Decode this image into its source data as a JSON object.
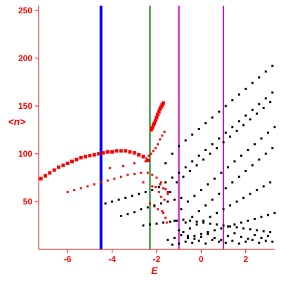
{
  "chart_data": {
    "type": "scatter",
    "xlabel": "E",
    "ylabel": "<n>",
    "xlim": [
      -7.3,
      3.3
    ],
    "ylim": [
      0,
      255
    ],
    "x_ticks": [
      -6,
      -4,
      -2,
      0,
      2
    ],
    "x_tick_labels": [
      "-6",
      "-4",
      "-2",
      "0",
      "2"
    ],
    "y_ticks": [
      50,
      100,
      150,
      200,
      250
    ],
    "y_tick_labels": [
      "50",
      "100",
      "150",
      "200",
      "250"
    ],
    "grid": false,
    "colors": {
      "axis": "#ff0000",
      "red_series": "#ff0000",
      "black_series": "#000000"
    },
    "vertical_lines": [
      {
        "x": -4.5,
        "color": "#0000ff",
        "width": "thick"
      },
      {
        "x": -2.3,
        "color": "#008000",
        "width": "thin"
      },
      {
        "x": -1.0,
        "color": "#cc00cc",
        "width": "thin"
      },
      {
        "x": 1.0,
        "color": "#cc00cc",
        "width": "thin"
      }
    ],
    "series": [
      {
        "color": "#ff0000",
        "marker": "large",
        "x": [
          -7.2,
          -7.0,
          -6.8,
          -6.6,
          -6.4,
          -6.2,
          -6.0,
          -5.8,
          -5.6,
          -5.4,
          -5.2,
          -5.0,
          -4.8,
          -4.6,
          -4.4,
          -4.2,
          -4.0,
          -3.8,
          -3.6,
          -3.4,
          -3.2,
          -3.0,
          -2.8,
          -2.6,
          -2.4,
          -2.25,
          -2.2,
          -2.15,
          -2.1,
          -2.05,
          -2.0,
          -1.95,
          -1.9,
          -1.85,
          -1.8,
          -1.75,
          -1.7
        ],
        "y": [
          74,
          77,
          80,
          83,
          86,
          88,
          90,
          92,
          94,
          96,
          97,
          98,
          99,
          100,
          101,
          102,
          102,
          103,
          103,
          103,
          102,
          101,
          99,
          97,
          93,
          125,
          127,
          130,
          132,
          135,
          138,
          141,
          144,
          147,
          149,
          151,
          153
        ]
      },
      {
        "color": "#ff0000",
        "marker": "small",
        "x": [
          -6.0,
          -5.7,
          -5.4,
          -5.1,
          -4.8,
          -4.5,
          -4.2,
          -3.9,
          -3.6,
          -3.3,
          -3.0,
          -2.7,
          -2.4,
          -2.2,
          -2.0,
          -1.8,
          -1.6,
          -1.5,
          -4.1,
          -3.5,
          -3.0,
          -2.5,
          -2.45,
          -2.35,
          -2.25,
          -2.15,
          -2.05,
          -1.95,
          -1.85,
          -1.75,
          -1.65,
          -2.05,
          -1.9,
          -1.8,
          -1.65,
          -2.3,
          -2.1,
          -1.95,
          -1.75,
          -2.6,
          -2.2,
          -1.85,
          -1.7,
          -1.5,
          -1.6,
          -1.7,
          -1.55
        ],
        "y": [
          60,
          62,
          64,
          66,
          68,
          70,
          72,
          74,
          76,
          78,
          79,
          80,
          80,
          78,
          75,
          70,
          63,
          58,
          85,
          87,
          90,
          92,
          95,
          98,
          100,
          103,
          106,
          110,
          115,
          119,
          123,
          65,
          60,
          55,
          52,
          48,
          45,
          42,
          40,
          70,
          66,
          68,
          64,
          60,
          33,
          38,
          28
        ]
      },
      {
        "color": "#000000",
        "marker": "small",
        "x": [
          -4.3,
          -4.0,
          -3.7,
          -3.4,
          -3.1,
          -2.8,
          -2.5,
          -2.2,
          -1.9,
          -1.6,
          -1.3,
          -1.0,
          -0.7,
          -0.4,
          -0.1,
          0.2,
          0.5,
          0.8,
          1.1,
          1.4,
          1.7,
          2.0,
          2.3,
          2.6,
          2.9,
          3.2,
          -1.6,
          -1.3,
          -1.0,
          -0.7,
          -0.4,
          -0.1,
          0.2,
          0.5,
          0.8,
          1.1,
          1.4,
          1.7,
          2.0,
          2.3,
          2.6,
          2.9,
          3.2,
          -1.4,
          -1.1,
          -0.8,
          -0.5,
          -0.2,
          0.1,
          0.4,
          0.7,
          1.0,
          1.3,
          1.6,
          1.9,
          2.2,
          2.5,
          2.8,
          3.1,
          -1.2,
          -0.9,
          -0.6,
          -0.3,
          0.0,
          0.3,
          0.6,
          0.9,
          1.2,
          1.5,
          1.8,
          2.1,
          2.4,
          2.7,
          3.0,
          3.3,
          -1.0,
          -0.7,
          -0.4,
          -0.1,
          0.2,
          0.5,
          0.8,
          1.1,
          1.4,
          1.7,
          2.0,
          2.3,
          2.6,
          2.9,
          3.2,
          -0.8,
          -0.5,
          -0.2,
          0.1,
          0.4,
          0.7,
          1.0,
          1.3,
          1.6,
          1.9,
          2.2,
          2.5,
          2.8,
          3.1,
          -0.6,
          -0.3,
          0.0,
          0.3,
          0.6,
          0.9,
          1.2,
          1.5,
          1.8,
          2.1,
          2.4,
          2.7,
          3.0,
          3.3,
          -3.6,
          -3.3,
          -3.0,
          -2.7,
          -2.4,
          -2.1,
          -1.8,
          -1.5,
          -1.2,
          -0.9,
          -2.6,
          -2.3,
          -2.0,
          -1.7,
          -1.4,
          -1.1,
          -0.8,
          -0.5,
          -0.2,
          0.1,
          0.4,
          0.7,
          1.0,
          1.3,
          1.6,
          1.9,
          2.2,
          2.5,
          2.8,
          3.1,
          -1.5,
          -1.2,
          -0.9,
          -0.6,
          -0.3,
          0.0,
          0.3,
          0.6,
          0.9,
          1.2,
          1.5,
          1.8,
          2.1,
          2.4,
          2.7,
          3.0,
          -1.3,
          -1.0,
          -0.7,
          -0.4,
          -0.1,
          0.2,
          0.5,
          0.8,
          1.1,
          1.4,
          1.7,
          2.0,
          2.3,
          2.6,
          2.9,
          3.2
        ],
        "y": [
          48,
          50,
          52,
          54,
          56,
          58,
          60,
          62,
          65,
          70,
          75,
          80,
          86,
          92,
          98,
          104,
          110,
          116,
          122,
          128,
          134,
          140,
          146,
          152,
          158,
          164,
          90,
          100,
          108,
          114,
          120,
          126,
          132,
          138,
          144,
          150,
          156,
          162,
          168,
          174,
          180,
          186,
          192,
          60,
          70,
          76,
          82,
          88,
          94,
          100,
          106,
          112,
          118,
          124,
          130,
          136,
          142,
          148,
          154,
          30,
          42,
          50,
          56,
          62,
          68,
          74,
          80,
          86,
          92,
          98,
          104,
          110,
          116,
          122,
          128,
          20,
          28,
          34,
          40,
          46,
          52,
          58,
          64,
          70,
          76,
          82,
          88,
          94,
          100,
          106,
          18,
          22,
          26,
          30,
          34,
          38,
          42,
          46,
          50,
          54,
          58,
          62,
          66,
          70,
          12,
          14,
          16,
          18,
          20,
          22,
          24,
          26,
          28,
          30,
          32,
          34,
          36,
          38,
          35,
          37,
          39,
          42,
          44,
          46,
          48,
          50,
          52,
          54,
          25,
          26,
          27,
          28,
          29,
          30,
          31,
          30,
          29,
          28,
          27,
          26,
          25,
          24,
          23,
          22,
          21,
          20,
          19,
          18,
          10,
          12,
          15,
          14,
          11,
          13,
          16,
          12,
          10,
          14,
          17,
          13,
          11,
          15,
          12,
          14,
          5,
          6,
          8,
          7,
          9,
          6,
          10,
          8,
          7,
          9,
          6,
          8,
          10,
          7,
          9,
          8
        ]
      }
    ]
  }
}
